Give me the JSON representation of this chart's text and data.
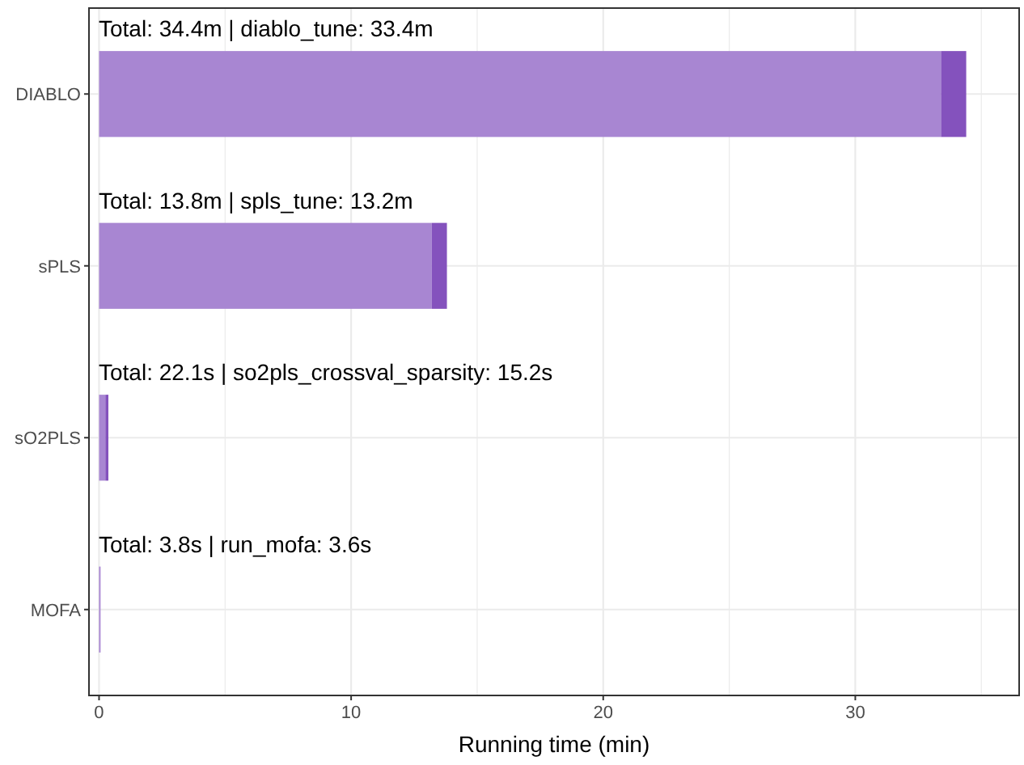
{
  "chart_data": {
    "type": "bar",
    "orientation": "horizontal",
    "stacked": true,
    "categories": [
      "DIABLO",
      "sPLS",
      "sO2PLS",
      "MOFA"
    ],
    "series": [
      {
        "color": "#a886d2",
        "values": [
          33.4,
          13.2,
          0.25,
          0.06
        ]
      },
      {
        "color": "#8452bd",
        "values": [
          1.0,
          0.6,
          0.12,
          0.0
        ]
      }
    ],
    "xlabel": "Running time (min)",
    "xlim": [
      -0.4,
      36.5
    ],
    "xticks": [
      0,
      {
        "value": 5,
        "label": null
      },
      10,
      {
        "value": 15,
        "label": null
      },
      20,
      {
        "value": 25,
        "label": null
      },
      30,
      {
        "value": 35,
        "label": null
      }
    ],
    "grid": true,
    "annotations": [
      "Total: 34.4m | diablo_tune: 33.4m",
      "Total: 13.8m | spls_tune: 13.2m",
      "Total: 22.1s | so2pls_crossval_sparsity: 15.2s",
      "Total: 3.8s | run_mofa: 3.6s"
    ]
  }
}
